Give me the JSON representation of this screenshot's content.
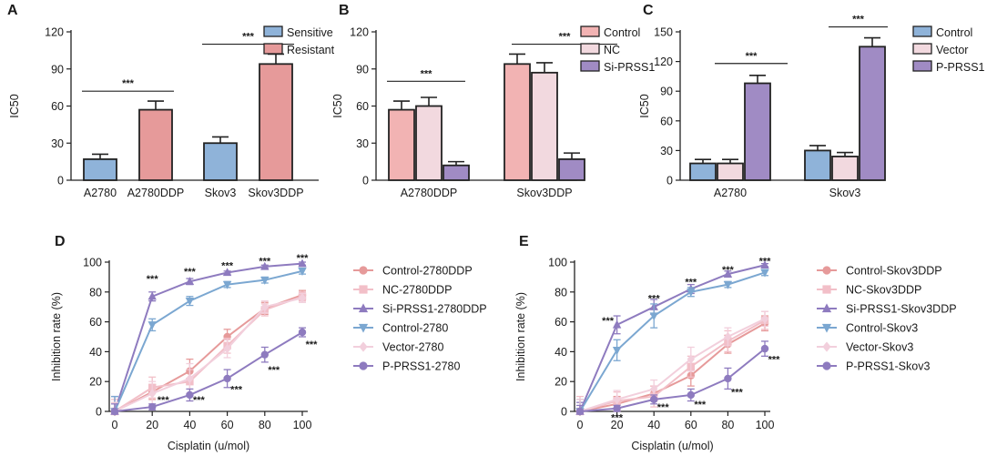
{
  "chart_data": [
    {
      "panel": "A",
      "type": "bar",
      "ylabel": "IC50",
      "ylim": [
        0,
        120
      ],
      "yticks": [
        0,
        30,
        60,
        90,
        120
      ],
      "groups": [
        "A2780",
        "A2780DDP",
        "Skov3",
        "Skov3DDP"
      ],
      "legend": [
        {
          "name": "Sensitive",
          "color": "#8fb3d9"
        },
        {
          "name": "Resistant",
          "color": "#e69a9a"
        }
      ],
      "bars": [
        {
          "label": "A2780",
          "value": 17,
          "err": 4,
          "series": "Sensitive"
        },
        {
          "label": "A2780DDP",
          "value": 57,
          "err": 7,
          "series": "Resistant"
        },
        {
          "label": "Skov3",
          "value": 30,
          "err": 5,
          "series": "Sensitive"
        },
        {
          "label": "Skov3DDP",
          "value": 94,
          "err": 8,
          "series": "Resistant"
        }
      ],
      "annotations": [
        {
          "text": "***",
          "between": [
            0,
            1
          ],
          "at": 72
        },
        {
          "text": "***",
          "between": [
            2,
            3
          ],
          "at": 110
        }
      ]
    },
    {
      "panel": "B",
      "type": "bar",
      "ylabel": "IC50",
      "ylim": [
        0,
        120
      ],
      "yticks": [
        0,
        30,
        60,
        90,
        120
      ],
      "categories": [
        "A2780DDP",
        "Skov3DDP"
      ],
      "series": [
        {
          "name": "Control",
          "color": "#f2b3b3",
          "values": [
            57,
            94
          ],
          "errors": [
            7,
            8
          ]
        },
        {
          "name": "NC",
          "color": "#f2d9df",
          "values": [
            60,
            87
          ],
          "errors": [
            7,
            8
          ]
        },
        {
          "name": "Si-PRSS1",
          "color": "#a08bc4",
          "values": [
            12,
            17
          ],
          "errors": [
            3,
            5
          ]
        }
      ],
      "annotations": [
        {
          "text": "***",
          "between": [
            "A2780DDP.Control",
            "A2780DDP.Si-PRSS1"
          ],
          "at": 80
        },
        {
          "text": "***",
          "between": [
            "Skov3DDP.Control",
            "Skov3DDP.Si-PRSS1"
          ],
          "at": 110
        }
      ]
    },
    {
      "panel": "C",
      "type": "bar",
      "ylabel": "IC50",
      "ylim": [
        0,
        150
      ],
      "yticks": [
        0,
        30,
        60,
        90,
        120,
        150
      ],
      "categories": [
        "A2780",
        "Skov3"
      ],
      "series": [
        {
          "name": "Control",
          "color": "#8fb3d9",
          "values": [
            17,
            30
          ],
          "errors": [
            4,
            5
          ]
        },
        {
          "name": "Vector",
          "color": "#f2d9df",
          "values": [
            17,
            24
          ],
          "errors": [
            4,
            4
          ]
        },
        {
          "name": "P-PRSS1",
          "color": "#a08bc4",
          "values": [
            98,
            135
          ],
          "errors": [
            8,
            9
          ]
        }
      ],
      "annotations": [
        {
          "text": "***",
          "between": [
            "A2780.Control",
            "A2780.P-PRSS1"
          ],
          "at": 118
        },
        {
          "text": "***",
          "between": [
            "Skov3.Control",
            "Skov3.P-PRSS1"
          ],
          "at": 155
        }
      ]
    },
    {
      "panel": "D",
      "type": "line",
      "xlabel": "Cisplatin (u/mol)",
      "ylabel": "Inhibition rate (%)",
      "xlim": [
        0,
        100
      ],
      "ylim": [
        0,
        100
      ],
      "xticks": [
        0,
        20,
        40,
        60,
        80,
        100
      ],
      "yticks": [
        0,
        20,
        40,
        60,
        80,
        100
      ],
      "x": [
        0,
        20,
        40,
        60,
        80,
        100
      ],
      "series": [
        {
          "name": "Control-2780DDP",
          "color": "#e69a9a",
          "marker": "circle",
          "values": [
            0,
            13,
            27,
            50,
            69,
            78
          ],
          "errors": [
            6,
            5,
            8,
            5,
            4,
            3
          ]
        },
        {
          "name": "NC-2780DDP",
          "color": "#f2bfc8",
          "marker": "square",
          "values": [
            0,
            16,
            20,
            44,
            68,
            77
          ],
          "errors": [
            8,
            7,
            8,
            5,
            4,
            3
          ]
        },
        {
          "name": "Si-PRSS1-2780DDP",
          "color": "#8e7bbf",
          "marker": "triangle-up",
          "values": [
            0,
            77,
            87,
            93,
            97,
            99
          ],
          "errors": [
            10,
            3,
            2,
            1,
            1,
            1
          ]
        },
        {
          "name": "Control-2780",
          "color": "#7ba7d1",
          "marker": "triangle-down",
          "values": [
            0,
            58,
            74,
            85,
            88,
            94
          ],
          "errors": [
            10,
            4,
            3,
            2,
            2,
            2
          ]
        },
        {
          "name": "Vector-2780",
          "color": "#f2cfdc",
          "marker": "diamond",
          "values": [
            0,
            12,
            22,
            42,
            70,
            76
          ],
          "errors": [
            6,
            8,
            10,
            6,
            4,
            3
          ]
        },
        {
          "name": "P-PRSS1-2780",
          "color": "#8e7bbf",
          "marker": "circle",
          "values": [
            0,
            3,
            11,
            22,
            38,
            53
          ],
          "errors": [
            5,
            2,
            4,
            6,
            5,
            3
          ]
        }
      ],
      "annotations": [
        {
          "text": "***",
          "x": 20,
          "y": 89
        },
        {
          "text": "***",
          "x": 40,
          "y": 94
        },
        {
          "text": "***",
          "x": 60,
          "y": 98
        },
        {
          "text": "***",
          "x": 80,
          "y": 101
        },
        {
          "text": "***",
          "x": 100,
          "y": 103
        },
        {
          "text": "***",
          "x": 20,
          "y": 8,
          "dx": 12
        },
        {
          "text": "***",
          "x": 40,
          "y": 8,
          "dx": 10
        },
        {
          "text": "***",
          "x": 60,
          "y": 15,
          "dx": 10
        },
        {
          "text": "***",
          "x": 80,
          "y": 28,
          "dx": 10
        },
        {
          "text": "***",
          "x": 100,
          "y": 45,
          "dx": 10
        }
      ]
    },
    {
      "panel": "E",
      "type": "line",
      "xlabel": "Cisplatin (u/mol)",
      "ylabel": "Inhibition rate (%)",
      "xlim": [
        0,
        100
      ],
      "ylim": [
        0,
        100
      ],
      "xticks": [
        0,
        20,
        40,
        60,
        80,
        100
      ],
      "yticks": [
        0,
        20,
        40,
        60,
        80,
        100
      ],
      "x": [
        0,
        20,
        40,
        60,
        80,
        100
      ],
      "series": [
        {
          "name": "Control-Skov3DDP",
          "color": "#e69a9a",
          "marker": "circle",
          "values": [
            0,
            5,
            12,
            24,
            45,
            59
          ],
          "errors": [
            8,
            5,
            5,
            7,
            6,
            5
          ]
        },
        {
          "name": "NC-Skov3DDP",
          "color": "#f2bfc8",
          "marker": "square",
          "values": [
            0,
            7,
            10,
            30,
            47,
            61
          ],
          "errors": [
            10,
            6,
            7,
            7,
            7,
            6
          ]
        },
        {
          "name": "Si-PRSS1-Skov3DDP",
          "color": "#8e7bbf",
          "marker": "triangle-up",
          "values": [
            0,
            58,
            70,
            82,
            92,
            98
          ],
          "errors": [
            6,
            6,
            5,
            3,
            2,
            1
          ]
        },
        {
          "name": "Control-Skov3",
          "color": "#7ba7d1",
          "marker": "triangle-down",
          "values": [
            0,
            41,
            64,
            80,
            85,
            93
          ],
          "errors": [
            8,
            7,
            8,
            3,
            2,
            2
          ]
        },
        {
          "name": "Vector-Skov3",
          "color": "#f2cfdc",
          "marker": "diamond",
          "values": [
            0,
            8,
            15,
            35,
            50,
            62
          ],
          "errors": [
            8,
            6,
            6,
            8,
            6,
            5
          ]
        },
        {
          "name": "P-PRSS1-Skov3",
          "color": "#8e7bbf",
          "marker": "circle",
          "values": [
            0,
            2,
            8,
            11,
            22,
            42
          ],
          "errors": [
            4,
            2,
            3,
            4,
            7,
            5
          ]
        }
      ],
      "annotations": [
        {
          "text": "***",
          "x": 20,
          "y": 61,
          "dx": -10
        },
        {
          "text": "***",
          "x": 40,
          "y": 76
        },
        {
          "text": "***",
          "x": 60,
          "y": 87
        },
        {
          "text": "***",
          "x": 80,
          "y": 95
        },
        {
          "text": "***",
          "x": 100,
          "y": 101
        },
        {
          "text": "***",
          "x": 20,
          "y": -4
        },
        {
          "text": "***",
          "x": 40,
          "y": 3,
          "dx": 10
        },
        {
          "text": "***",
          "x": 60,
          "y": 5,
          "dx": 10
        },
        {
          "text": "***",
          "x": 80,
          "y": 13,
          "dx": 10
        },
        {
          "text": "***",
          "x": 100,
          "y": 35,
          "dx": 10
        }
      ]
    }
  ]
}
